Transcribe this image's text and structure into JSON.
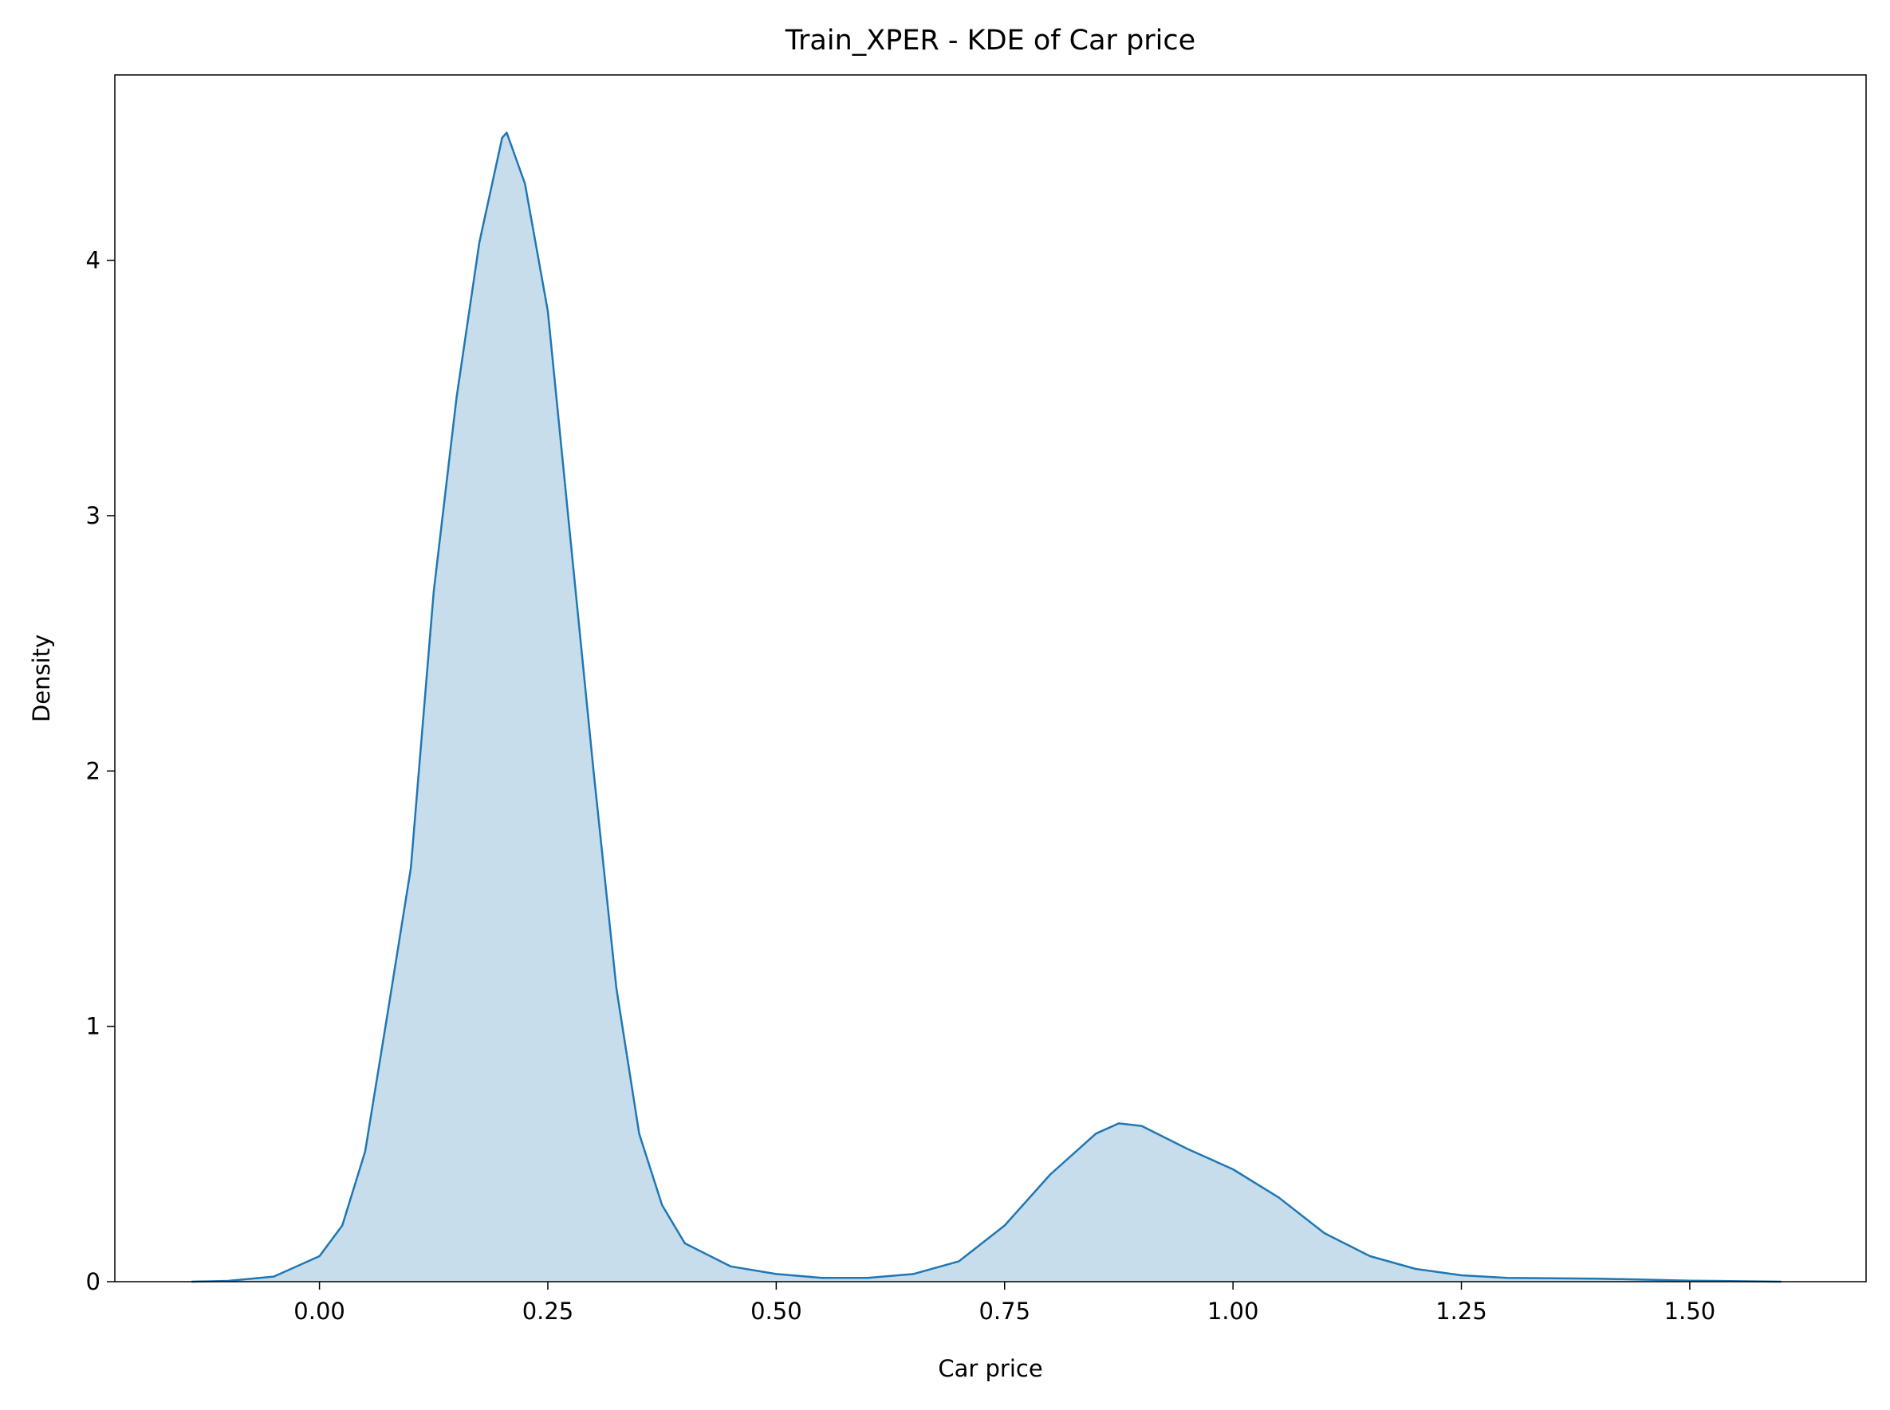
{
  "chart_data": {
    "type": "kde",
    "title": "Train_XPER - KDE of Car price",
    "xlabel": "Car price",
    "ylabel": "Density",
    "x": [
      -0.14,
      -0.1,
      -0.05,
      0,
      0.025,
      0.05,
      0.075,
      0.1,
      0.125,
      0.15,
      0.175,
      0.2,
      0.205,
      0.225,
      0.25,
      0.275,
      0.3,
      0.325,
      0.35,
      0.375,
      0.4,
      0.45,
      0.5,
      0.55,
      0.6,
      0.65,
      0.7,
      0.75,
      0.8,
      0.85,
      0.875,
      0.9,
      0.95,
      1.0,
      1.05,
      1.1,
      1.15,
      1.2,
      1.25,
      1.3,
      1.4,
      1.5,
      1.6
    ],
    "values": [
      0,
      0.003,
      0.02,
      0.1,
      0.22,
      0.51,
      1.06,
      1.62,
      2.7,
      3.46,
      4.07,
      4.48,
      4.5,
      4.3,
      3.8,
      2.9,
      2.0,
      1.15,
      0.58,
      0.3,
      0.15,
      0.06,
      0.03,
      0.015,
      0.015,
      0.03,
      0.08,
      0.22,
      0.42,
      0.58,
      0.62,
      0.61,
      0.52,
      0.44,
      0.33,
      0.19,
      0.1,
      0.05,
      0.025,
      0.015,
      0.012,
      0.004,
      0
    ],
    "color": "#1f77b4",
    "fill_opacity": 0.25,
    "xlim": [
      -0.224,
      1.693
    ],
    "ylim": [
      0,
      4.726
    ],
    "xticks": [
      {
        "value": 0,
        "label": "0.00"
      },
      0.25,
      {
        "value": 0.5,
        "label": "0.50"
      },
      0.75,
      {
        "value": 1,
        "label": "1.00"
      },
      1.25,
      {
        "value": 1.5,
        "label": "1.50"
      }
    ],
    "yticks": [
      0,
      1,
      2,
      3,
      4
    ],
    "grid": false
  }
}
